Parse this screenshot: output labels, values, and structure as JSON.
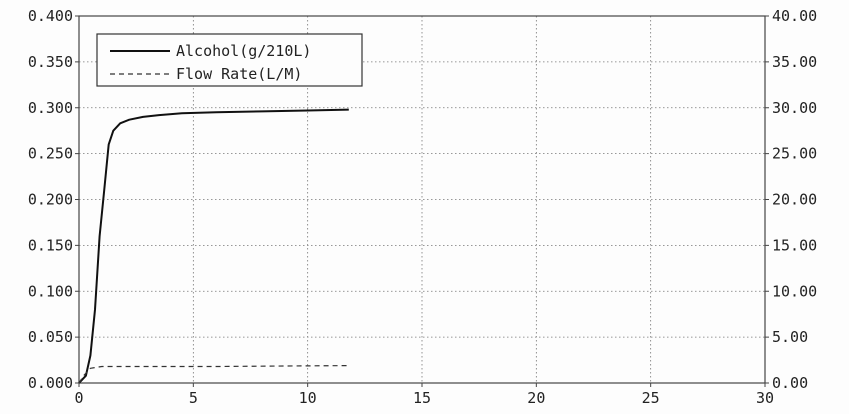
{
  "chart_data": {
    "type": "line",
    "title": "",
    "xlabel": "",
    "ylabel": "",
    "y2label": "",
    "xlim": [
      0,
      30
    ],
    "ylim": [
      0,
      0.4
    ],
    "y2lim": [
      0,
      40
    ],
    "x_ticks": [
      "0",
      "5",
      "10",
      "15",
      "20",
      "25",
      "30"
    ],
    "y_ticks": [
      "0.000",
      "0.050",
      "0.100",
      "0.150",
      "0.200",
      "0.250",
      "0.300",
      "0.350",
      "0.400"
    ],
    "y2_ticks": [
      "0.00",
      "5.00",
      "10.00",
      "15.00",
      "20.00",
      "25.00",
      "30.00",
      "35.00",
      "40.00"
    ],
    "grid": true,
    "legend_position": "top-left",
    "series": [
      {
        "name": "Alcohol(g/210L)",
        "axis": "left",
        "style": "solid",
        "color": "#111111",
        "x": [
          0,
          0.3,
          0.5,
          0.7,
          0.9,
          1.1,
          1.3,
          1.5,
          1.8,
          2.2,
          2.8,
          3.5,
          4.5,
          6,
          8,
          10,
          11.8
        ],
        "y": [
          0,
          0.008,
          0.03,
          0.08,
          0.16,
          0.21,
          0.26,
          0.275,
          0.283,
          0.287,
          0.29,
          0.292,
          0.294,
          0.295,
          0.296,
          0.297,
          0.298
        ]
      },
      {
        "name": "Flow Rate(L/M)",
        "axis": "right",
        "style": "dashed",
        "color": "#333333",
        "x": [
          0,
          0.2,
          0.5,
          1,
          3,
          6,
          9,
          11.8
        ],
        "y": [
          0,
          0.8,
          1.6,
          1.8,
          1.8,
          1.8,
          1.85,
          1.9
        ]
      }
    ]
  }
}
